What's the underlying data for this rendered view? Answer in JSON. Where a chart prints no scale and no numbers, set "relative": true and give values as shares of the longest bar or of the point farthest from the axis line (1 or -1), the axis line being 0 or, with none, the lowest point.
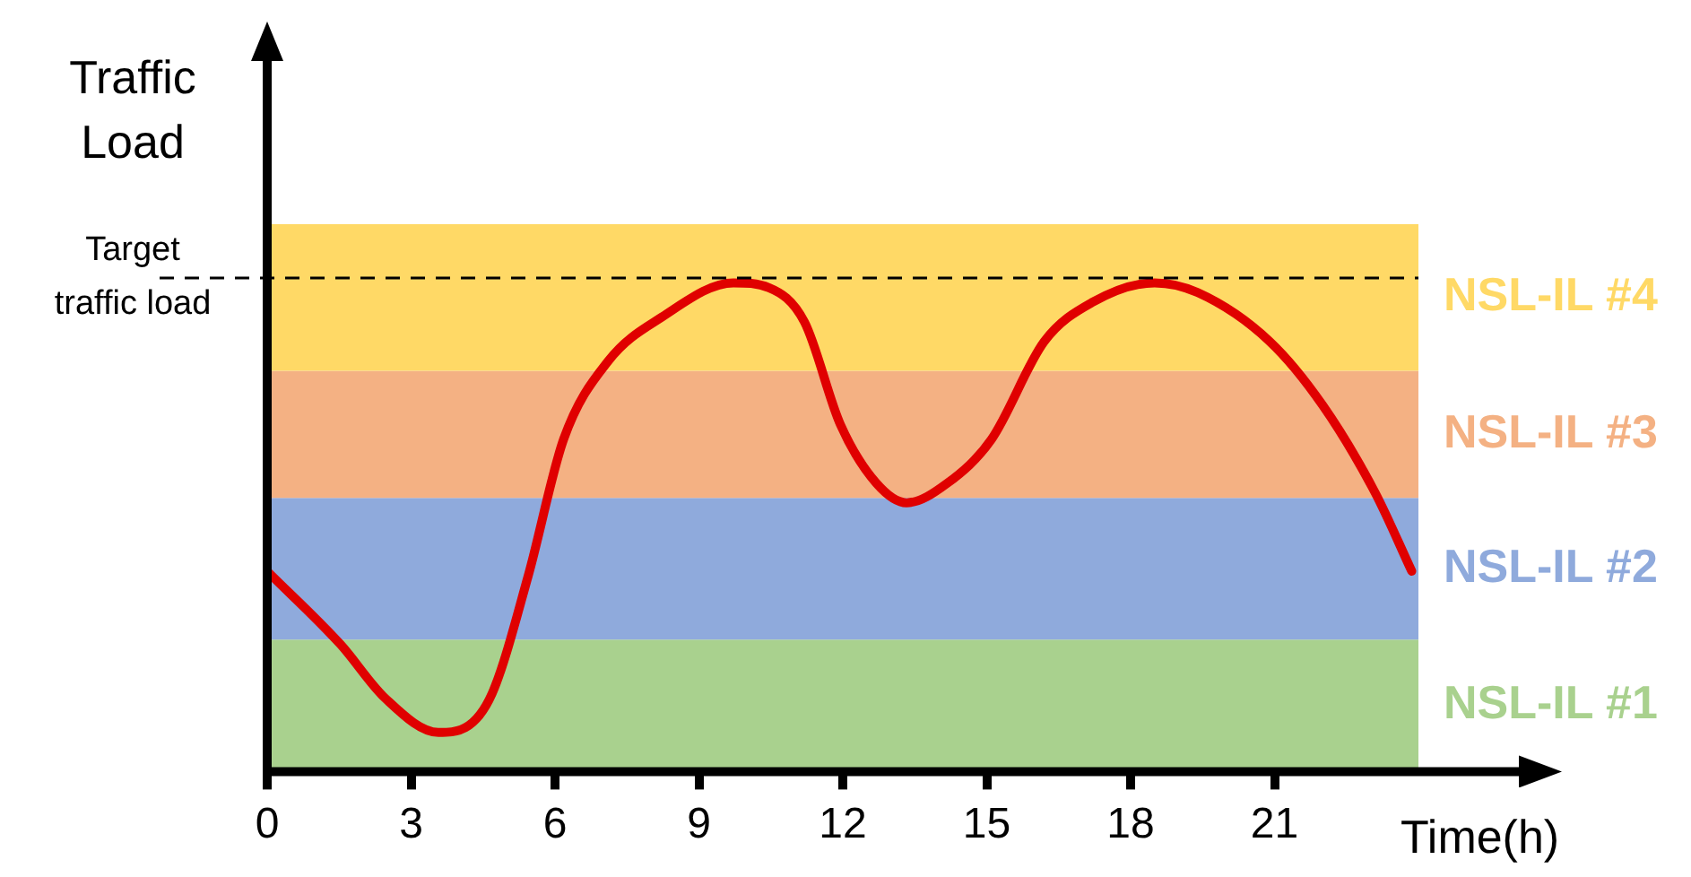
{
  "chart_data": {
    "type": "line",
    "relative": true,
    "xlabel": "Time(h)",
    "ylabel": "Traffic Load",
    "x": [
      0,
      1.53,
      2.46,
      3.57,
      4.13,
      4.69,
      5.44,
      6.18,
      7.11,
      8.23,
      9.72,
      10.46,
      11.2,
      11.95,
      12.7,
      13.33,
      14.18,
      15.1,
      16.2,
      17.2,
      18.5,
      19.4,
      20.9,
      22.0,
      23.1,
      23.86
    ],
    "series": [
      {
        "color": "#e00000",
        "values": [
          0.41,
          0.26,
          0.15,
          0.08,
          0.09,
          0.16,
          0.4,
          0.68,
          0.84,
          0.93,
          1.0,
          0.99,
          0.92,
          0.71,
          0.59,
          0.55,
          0.59,
          0.68,
          0.88,
          0.96,
          1.0,
          0.98,
          0.88,
          0.75,
          0.57,
          0.41
        ]
      }
    ],
    "xlim": [
      0,
      24
    ],
    "xticks": [
      0,
      3,
      6,
      9,
      12,
      15,
      18,
      21
    ],
    "bands": [
      {
        "axis": "y",
        "from": 0,
        "to": 0.27,
        "label": "NSL-IL #1",
        "color": "#a9d18e"
      },
      {
        "axis": "y",
        "from": 0.27,
        "to": 0.56,
        "label": "NSL-IL #2",
        "color": "#8faadc"
      },
      {
        "axis": "y",
        "from": 0.56,
        "to": 0.82,
        "label": "NSL-IL #3",
        "color": "#f4b183"
      },
      {
        "axis": "y",
        "from": 0.82,
        "to": 1.12,
        "label": "NSL-IL #4",
        "color": "#ffd966"
      }
    ],
    "ref_lines": [
      {
        "axis": "y",
        "value": 1.01,
        "label": "Target traffic load",
        "line_style": "dashed",
        "color": "#000000"
      }
    ],
    "grid": false,
    "legend": false,
    "marker": "none",
    "line_style": "solid"
  }
}
